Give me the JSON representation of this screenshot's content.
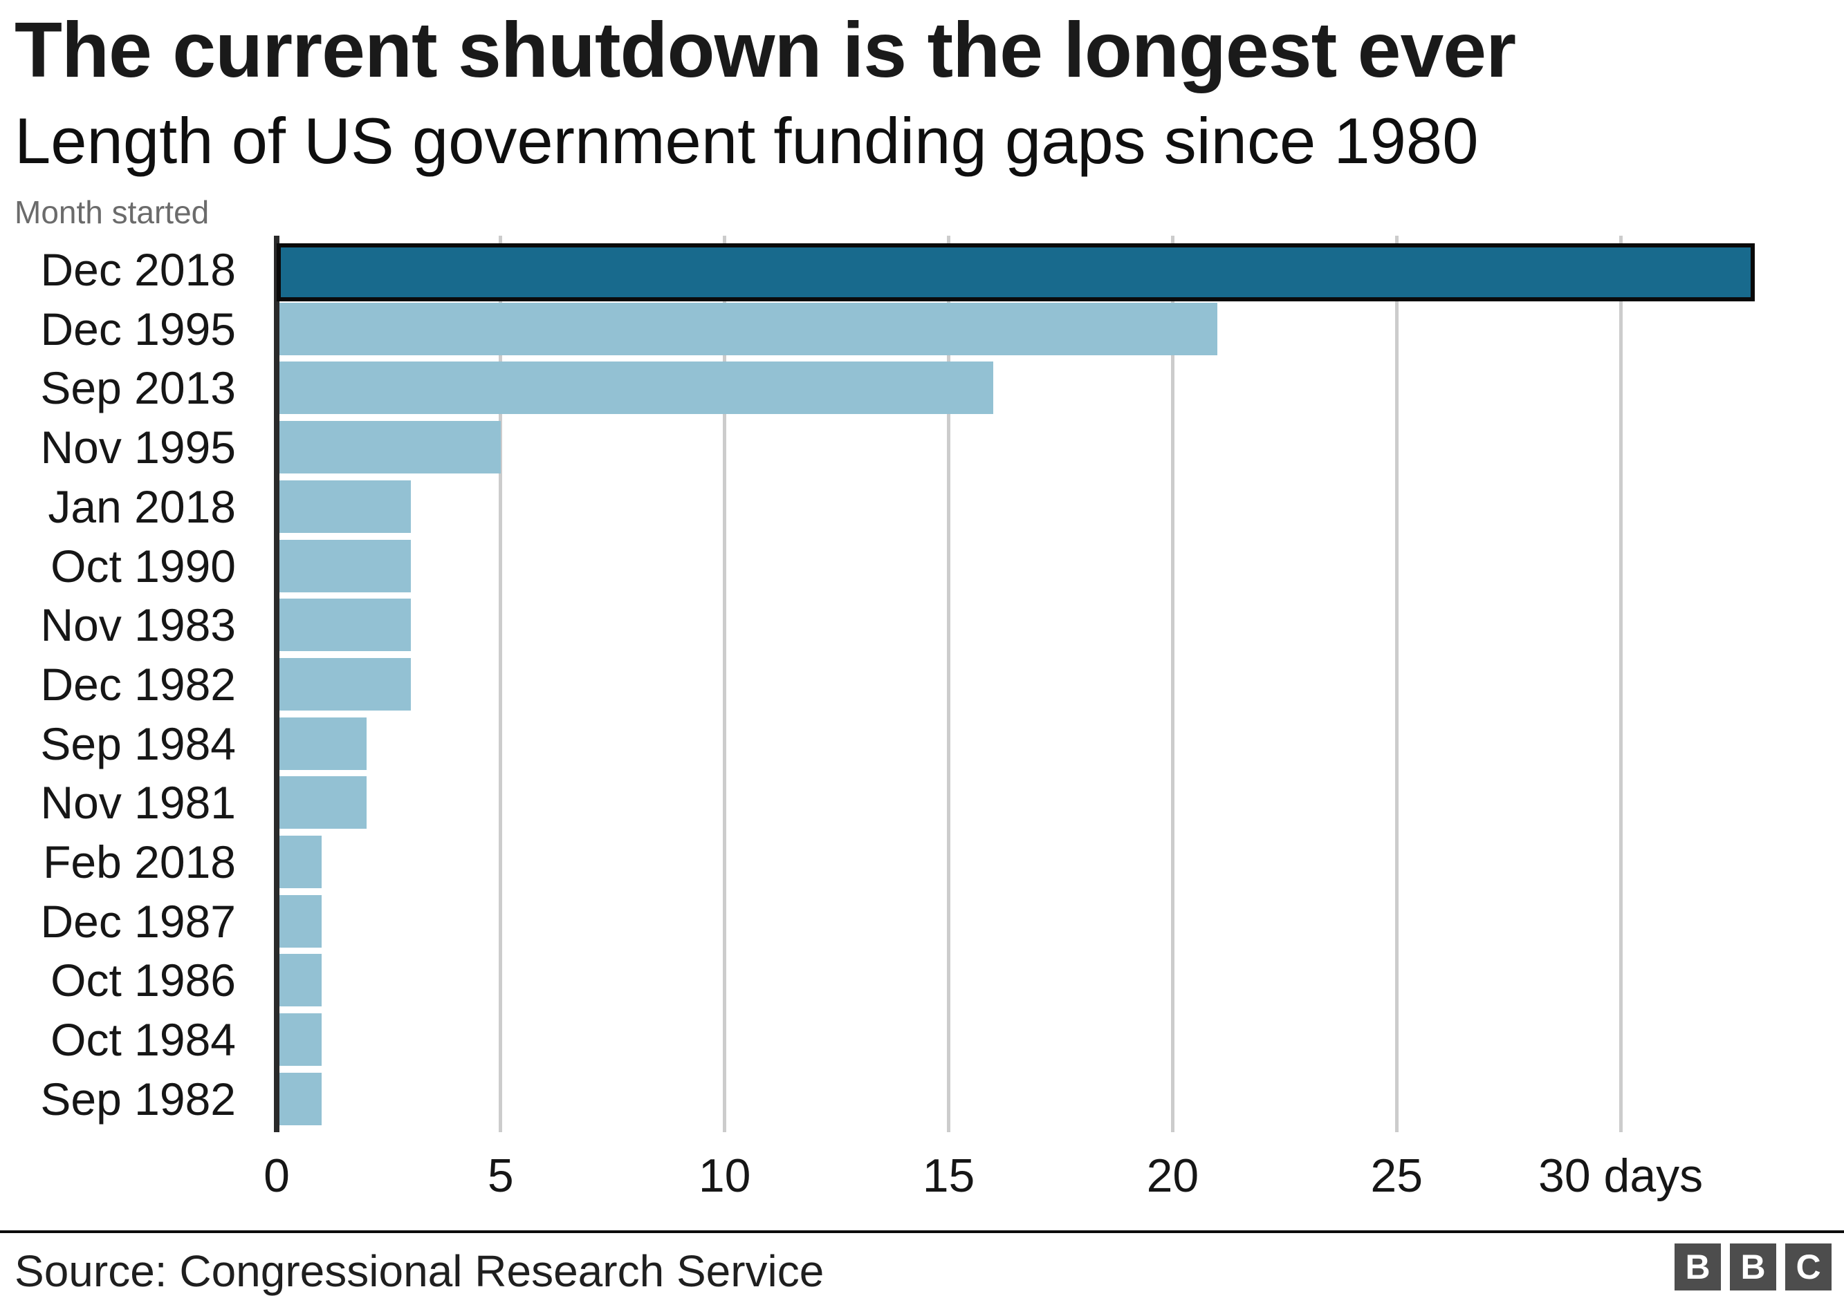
{
  "header": {
    "title": "The current shutdown is the longest ever",
    "subtitle": "Length of US government funding gaps since 1980"
  },
  "chart_data": {
    "type": "bar",
    "orientation": "horizontal",
    "ylabel": "Month started",
    "categories": [
      "Dec 2018",
      "Dec 1995",
      "Sep 2013",
      "Nov 1995",
      "Jan 2018",
      "Oct 1990",
      "Nov 1983",
      "Dec 1982",
      "Sep 1984",
      "Nov 1981",
      "Feb 2018",
      "Dec 1987",
      "Oct 1986",
      "Oct 1984",
      "Sep 1982"
    ],
    "values": [
      33,
      21,
      16,
      5,
      3,
      3,
      3,
      3,
      2,
      2,
      1,
      1,
      1,
      1,
      1
    ],
    "unit": "days",
    "highlight_index": 0,
    "x_ticks": [
      0,
      5,
      10,
      15,
      20,
      25,
      30
    ],
    "x_tick_labels": [
      "0",
      "5",
      "10",
      "15",
      "20",
      "25",
      "30 days"
    ],
    "xlim": [
      0,
      33.2
    ],
    "grid": "vertical",
    "legend": "none",
    "colors": {
      "bar": "#93c1d3",
      "highlight_bar": "#186a8d",
      "highlight_border": "#0a0a0a",
      "gridline": "#cccccc",
      "axis": "#2a2a2a"
    }
  },
  "footer": {
    "source": "Source: Congressional Research Service",
    "logo_letters": [
      "B",
      "B",
      "C"
    ]
  }
}
